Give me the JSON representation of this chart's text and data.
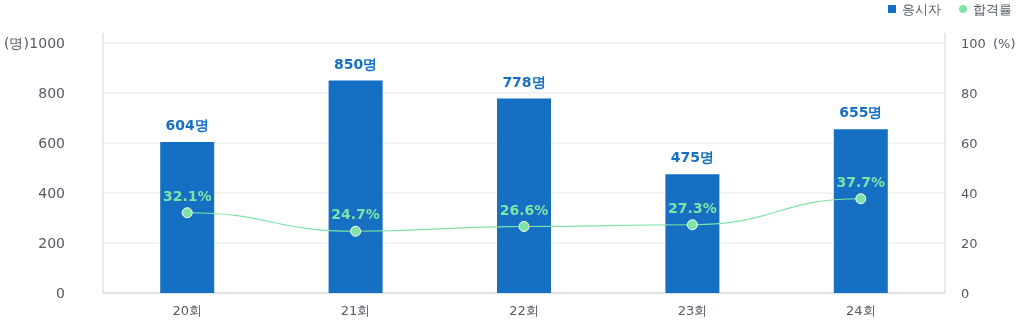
{
  "chart_data": {
    "type": "bar",
    "categories": [
      "20회",
      "21회",
      "22회",
      "23회",
      "24회"
    ],
    "series": [
      {
        "name": "응시자",
        "color": "#1570c4",
        "values": [
          604,
          850,
          778,
          475,
          655
        ],
        "value_labels": [
          "604명",
          "850명",
          "778명",
          "475명",
          "655명"
        ]
      },
      {
        "name": "합격률",
        "type": "line",
        "axis": "y2",
        "color": "#7fe3a8",
        "values": [
          32.1,
          24.7,
          26.6,
          27.3,
          37.7
        ],
        "value_labels": [
          "32.1%",
          "24.7%",
          "26.6%",
          "27.3%",
          "37.7%"
        ],
        "marker": "circle"
      }
    ],
    "ylabel": "(명)",
    "y2label": "(%)",
    "ylim": [
      0,
      1000
    ],
    "yticks": [
      0,
      200,
      400,
      600,
      800,
      1000
    ],
    "y2lim": [
      0,
      100
    ],
    "y2ticks": [
      0,
      20,
      40,
      60,
      80,
      100
    ],
    "grid": "y",
    "legend": "top right"
  }
}
